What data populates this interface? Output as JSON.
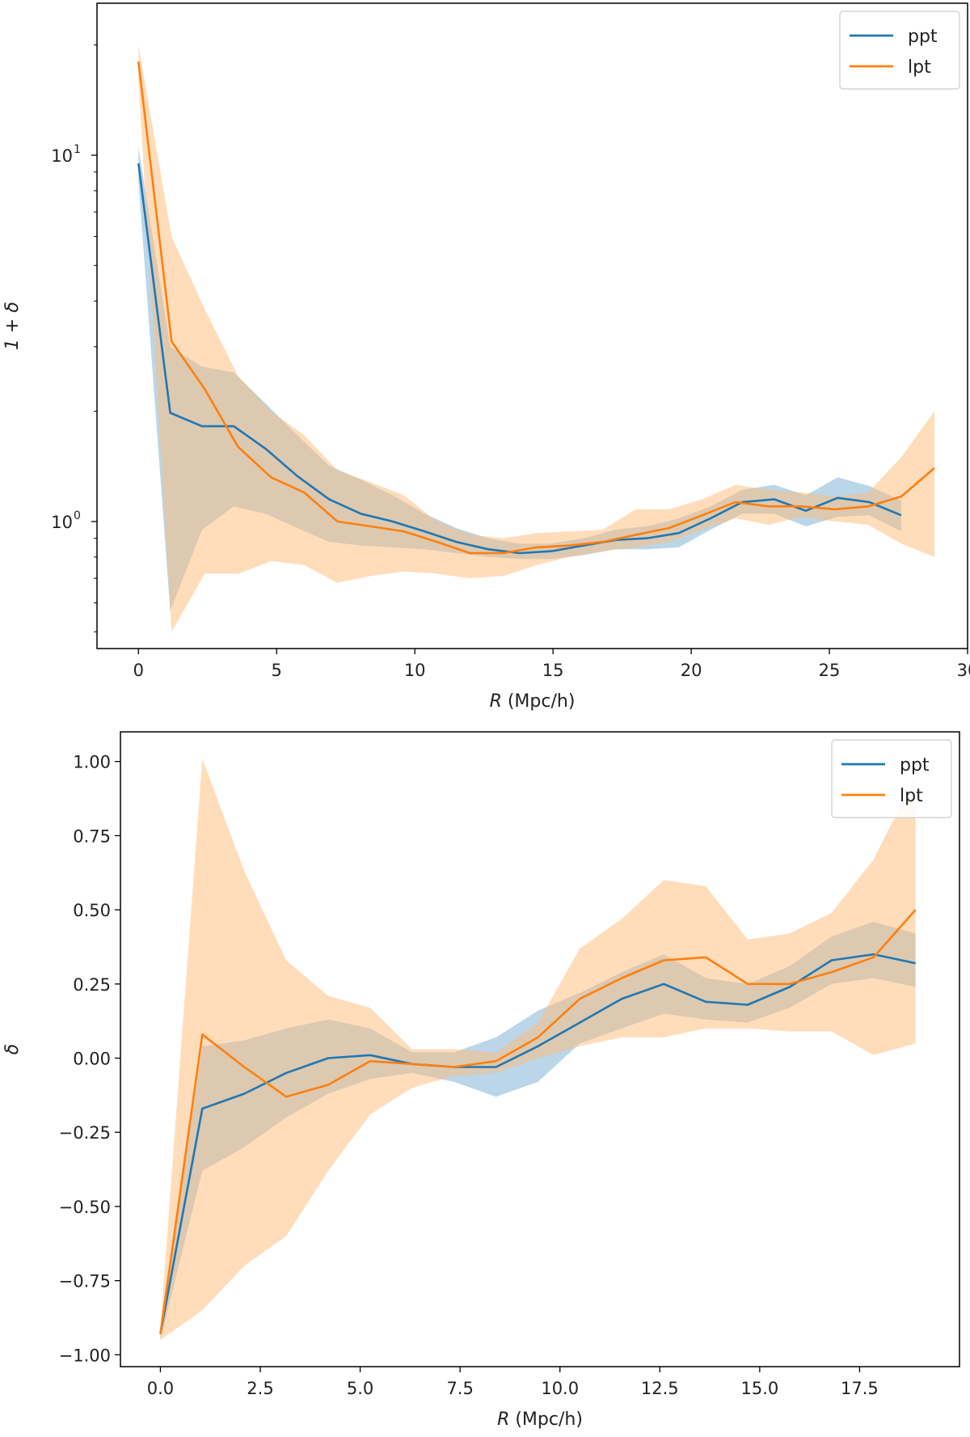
{
  "chart_data": [
    {
      "type": "line",
      "title": "",
      "xlabel": "R (Mpc/h)",
      "xlabel_var": "R",
      "xlabel_unit": " (Mpc/h)",
      "ylabel": "1 + δ",
      "yscale": "log",
      "xlim": [
        -1.5,
        30
      ],
      "ylim": [
        0.45,
        26
      ],
      "xticks": [
        0,
        5,
        10,
        15,
        20,
        25,
        30
      ],
      "xtick_labels": [
        "0",
        "5",
        "10",
        "15",
        "20",
        "25",
        "30"
      ],
      "yticks": [
        1,
        10
      ],
      "ytick_labels": [
        {
          "base": "10",
          "exp": "0"
        },
        {
          "base": "10",
          "exp": "1"
        }
      ],
      "legend_position": "upper right",
      "series": [
        {
          "name": "ppt",
          "color": "#1f77b4",
          "band_color": "#1f77b4",
          "x": [
            0,
            1.15,
            2.3,
            3.45,
            4.6,
            5.75,
            6.9,
            8.05,
            9.2,
            10.35,
            11.5,
            12.65,
            13.8,
            14.95,
            16.1,
            17.25,
            18.4,
            19.55,
            20.7,
            21.85,
            23.0,
            24.15,
            25.3,
            26.45,
            27.6
          ],
          "y": [
            9.5,
            1.98,
            1.82,
            1.82,
            1.58,
            1.33,
            1.15,
            1.05,
            1.0,
            0.94,
            0.88,
            0.84,
            0.82,
            0.83,
            0.86,
            0.89,
            0.9,
            0.93,
            1.02,
            1.13,
            1.15,
            1.07,
            1.16,
            1.13,
            1.04
          ],
          "lower": [
            8.5,
            0.57,
            0.95,
            1.1,
            1.05,
            0.96,
            0.88,
            0.86,
            0.85,
            0.84,
            0.82,
            0.8,
            0.79,
            0.79,
            0.81,
            0.84,
            0.84,
            0.85,
            0.95,
            1.05,
            1.05,
            0.97,
            1.03,
            1.04,
            0.94
          ],
          "upper": [
            10.5,
            3.0,
            2.65,
            2.55,
            2.1,
            1.72,
            1.42,
            1.3,
            1.18,
            1.05,
            0.96,
            0.9,
            0.87,
            0.87,
            0.9,
            0.95,
            0.97,
            1.02,
            1.1,
            1.22,
            1.26,
            1.18,
            1.32,
            1.25,
            1.14
          ]
        },
        {
          "name": "lpt",
          "color": "#ff7f0e",
          "band_color": "#ffbb78",
          "x": [
            0,
            1.2,
            2.4,
            3.6,
            4.8,
            6.0,
            7.2,
            8.4,
            9.6,
            10.8,
            12.0,
            13.2,
            14.4,
            15.6,
            16.8,
            18.0,
            19.2,
            20.4,
            21.6,
            22.8,
            24.0,
            25.2,
            26.4,
            27.6,
            28.8
          ],
          "y": [
            18.0,
            3.1,
            2.3,
            1.6,
            1.32,
            1.2,
            1.0,
            0.97,
            0.94,
            0.88,
            0.82,
            0.82,
            0.85,
            0.86,
            0.88,
            0.92,
            0.96,
            1.04,
            1.13,
            1.1,
            1.1,
            1.08,
            1.1,
            1.17,
            1.4
          ],
          "lower": [
            16.0,
            0.5,
            0.72,
            0.72,
            0.78,
            0.76,
            0.68,
            0.71,
            0.73,
            0.72,
            0.7,
            0.71,
            0.76,
            0.8,
            0.83,
            0.85,
            0.88,
            0.95,
            1.02,
            0.98,
            1.03,
            1.0,
            0.98,
            0.87,
            0.8
          ],
          "upper": [
            20.0,
            6.0,
            3.8,
            2.5,
            2.0,
            1.72,
            1.38,
            1.28,
            1.18,
            1.0,
            0.92,
            0.9,
            0.93,
            0.94,
            0.95,
            1.08,
            1.08,
            1.15,
            1.26,
            1.22,
            1.2,
            1.17,
            1.2,
            1.5,
            2.0
          ]
        }
      ]
    },
    {
      "type": "line",
      "title": "",
      "xlabel": "R (Mpc/h)",
      "xlabel_var": "R",
      "xlabel_unit": " (Mpc/h)",
      "ylabel": "δ",
      "yscale": "linear",
      "xlim": [
        -1.0,
        20.0
      ],
      "ylim": [
        -1.04,
        1.1
      ],
      "xticks": [
        0.0,
        2.5,
        5.0,
        7.5,
        10.0,
        12.5,
        15.0,
        17.5
      ],
      "xtick_labels": [
        "0.0",
        "2.5",
        "5.0",
        "7.5",
        "10.0",
        "12.5",
        "15.0",
        "17.5"
      ],
      "yticks": [
        -1.0,
        -0.75,
        -0.5,
        -0.25,
        0.0,
        0.25,
        0.5,
        0.75,
        1.0
      ],
      "ytick_labels": [
        "−1.00",
        "−0.75",
        "−0.50",
        "−0.25",
        "0.00",
        "0.25",
        "0.50",
        "0.75",
        "1.00"
      ],
      "legend_position": "upper right",
      "series": [
        {
          "name": "ppt",
          "color": "#1f77b4",
          "band_color": "#1f77b4",
          "x": [
            0,
            1.05,
            2.1,
            3.15,
            4.2,
            5.25,
            6.3,
            7.35,
            8.4,
            9.45,
            10.5,
            11.55,
            12.6,
            13.65,
            14.7,
            15.75,
            16.8,
            17.85,
            18.9
          ],
          "y": [
            -0.93,
            -0.17,
            -0.12,
            -0.05,
            0.0,
            0.01,
            -0.02,
            -0.03,
            -0.03,
            0.04,
            0.12,
            0.2,
            0.25,
            0.19,
            0.18,
            0.24,
            0.33,
            0.35,
            0.32
          ],
          "lower": [
            -0.95,
            -0.38,
            -0.3,
            -0.2,
            -0.12,
            -0.07,
            -0.05,
            -0.08,
            -0.13,
            -0.08,
            0.05,
            0.1,
            0.15,
            0.13,
            0.12,
            0.17,
            0.25,
            0.27,
            0.24
          ],
          "upper": [
            -0.91,
            0.04,
            0.06,
            0.1,
            0.13,
            0.1,
            0.02,
            0.02,
            0.07,
            0.16,
            0.22,
            0.29,
            0.35,
            0.27,
            0.25,
            0.31,
            0.41,
            0.46,
            0.42
          ]
        },
        {
          "name": "lpt",
          "color": "#ff7f0e",
          "band_color": "#ffbb78",
          "x": [
            0,
            1.05,
            2.1,
            3.15,
            4.2,
            5.25,
            6.3,
            7.35,
            8.4,
            9.45,
            10.5,
            11.55,
            12.6,
            13.65,
            14.7,
            15.75,
            16.8,
            17.85,
            18.9
          ],
          "y": [
            -0.93,
            0.08,
            -0.03,
            -0.13,
            -0.09,
            -0.01,
            -0.02,
            -0.03,
            -0.01,
            0.07,
            0.2,
            0.27,
            0.33,
            0.34,
            0.25,
            0.25,
            0.29,
            0.34,
            0.5
          ],
          "lower": [
            -0.95,
            -0.85,
            -0.7,
            -0.6,
            -0.38,
            -0.19,
            -0.1,
            -0.06,
            -0.05,
            0.0,
            0.04,
            0.07,
            0.07,
            0.1,
            0.1,
            0.09,
            0.09,
            0.01,
            0.05
          ],
          "upper": [
            -0.91,
            1.01,
            0.63,
            0.33,
            0.21,
            0.17,
            0.03,
            0.03,
            0.02,
            0.12,
            0.37,
            0.47,
            0.6,
            0.58,
            0.4,
            0.42,
            0.49,
            0.67,
            0.95
          ]
        }
      ]
    }
  ]
}
